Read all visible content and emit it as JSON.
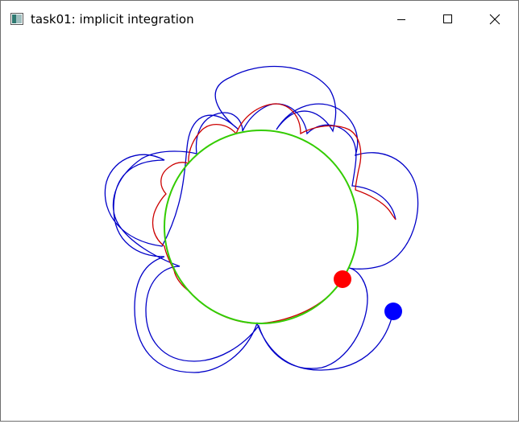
{
  "window": {
    "title": "task01: implicit integration",
    "controls": {
      "minimize_icon": "minimize-icon",
      "maximize_icon": "maximize-icon",
      "close_icon": "close-icon"
    }
  },
  "scene": {
    "colors": {
      "constraint_circle": "#33cc00",
      "blue_trajectory": "#0000c8",
      "red_trajectory": "#cc0000",
      "red_ball": "#ff0000",
      "blue_ball": "#0000ff"
    }
  }
}
